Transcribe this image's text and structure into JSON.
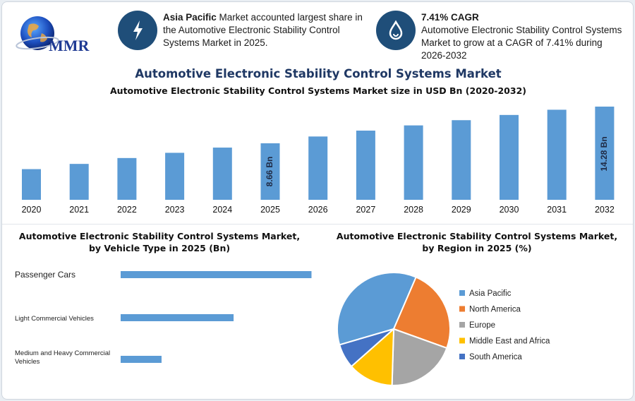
{
  "logo": {
    "text": "MMR"
  },
  "kpi": [
    {
      "icon": "lightning-bolt-icon",
      "bold": "Asia Pacific",
      "text": " Market accounted largest share in the Automotive Electronic Stability Control Systems Market in 2025."
    },
    {
      "icon": "growth-drop-icon",
      "bold": "7.41% CAGR",
      "text": "Automotive Electronic Stability Control Systems Market to grow at a CAGR of 7.41% during 2026-2032"
    }
  ],
  "main_title": "Automotive Electronic Stability Control Systems Market",
  "chart_data": [
    {
      "type": "bar",
      "title": "Automotive Electronic Stability Control Systems Market size in USD Bn (2020-2032)",
      "categories": [
        "2020",
        "2021",
        "2022",
        "2023",
        "2024",
        "2025",
        "2026",
        "2027",
        "2028",
        "2029",
        "2030",
        "2031",
        "2032"
      ],
      "values": [
        4.7,
        5.5,
        6.4,
        7.2,
        8.0,
        8.66,
        9.7,
        10.6,
        11.4,
        12.2,
        13.0,
        13.8,
        14.28
      ],
      "data_labels": {
        "2025": "8.66 Bn",
        "2032": "14.28 Bn"
      },
      "ylim": [
        0,
        14.28
      ],
      "color": "#5b9bd5"
    },
    {
      "type": "bar",
      "orientation": "horizontal",
      "title": "Automotive Electronic Stability Control Systems Market, by Vehicle Type in 2025 (Bn)",
      "categories": [
        "Passenger Cars",
        "Light Commercial Vehicles",
        "Medium and Heavy Commercial Vehicles"
      ],
      "values": [
        4.9,
        2.9,
        1.05
      ],
      "xlim": [
        0,
        5
      ],
      "color": "#5b9bd5"
    },
    {
      "type": "pie",
      "title": "Automotive Electronic Stability Control Systems Market, by Region in 2025 (%)",
      "labels": [
        "Asia Pacific",
        "North America",
        "Europe",
        "Middle East and Africa",
        "South America"
      ],
      "values": [
        36,
        24,
        20,
        13,
        7
      ],
      "colors": [
        "#5b9bd5",
        "#ed7d31",
        "#a5a5a5",
        "#ffc000",
        "#4472c4"
      ]
    }
  ]
}
